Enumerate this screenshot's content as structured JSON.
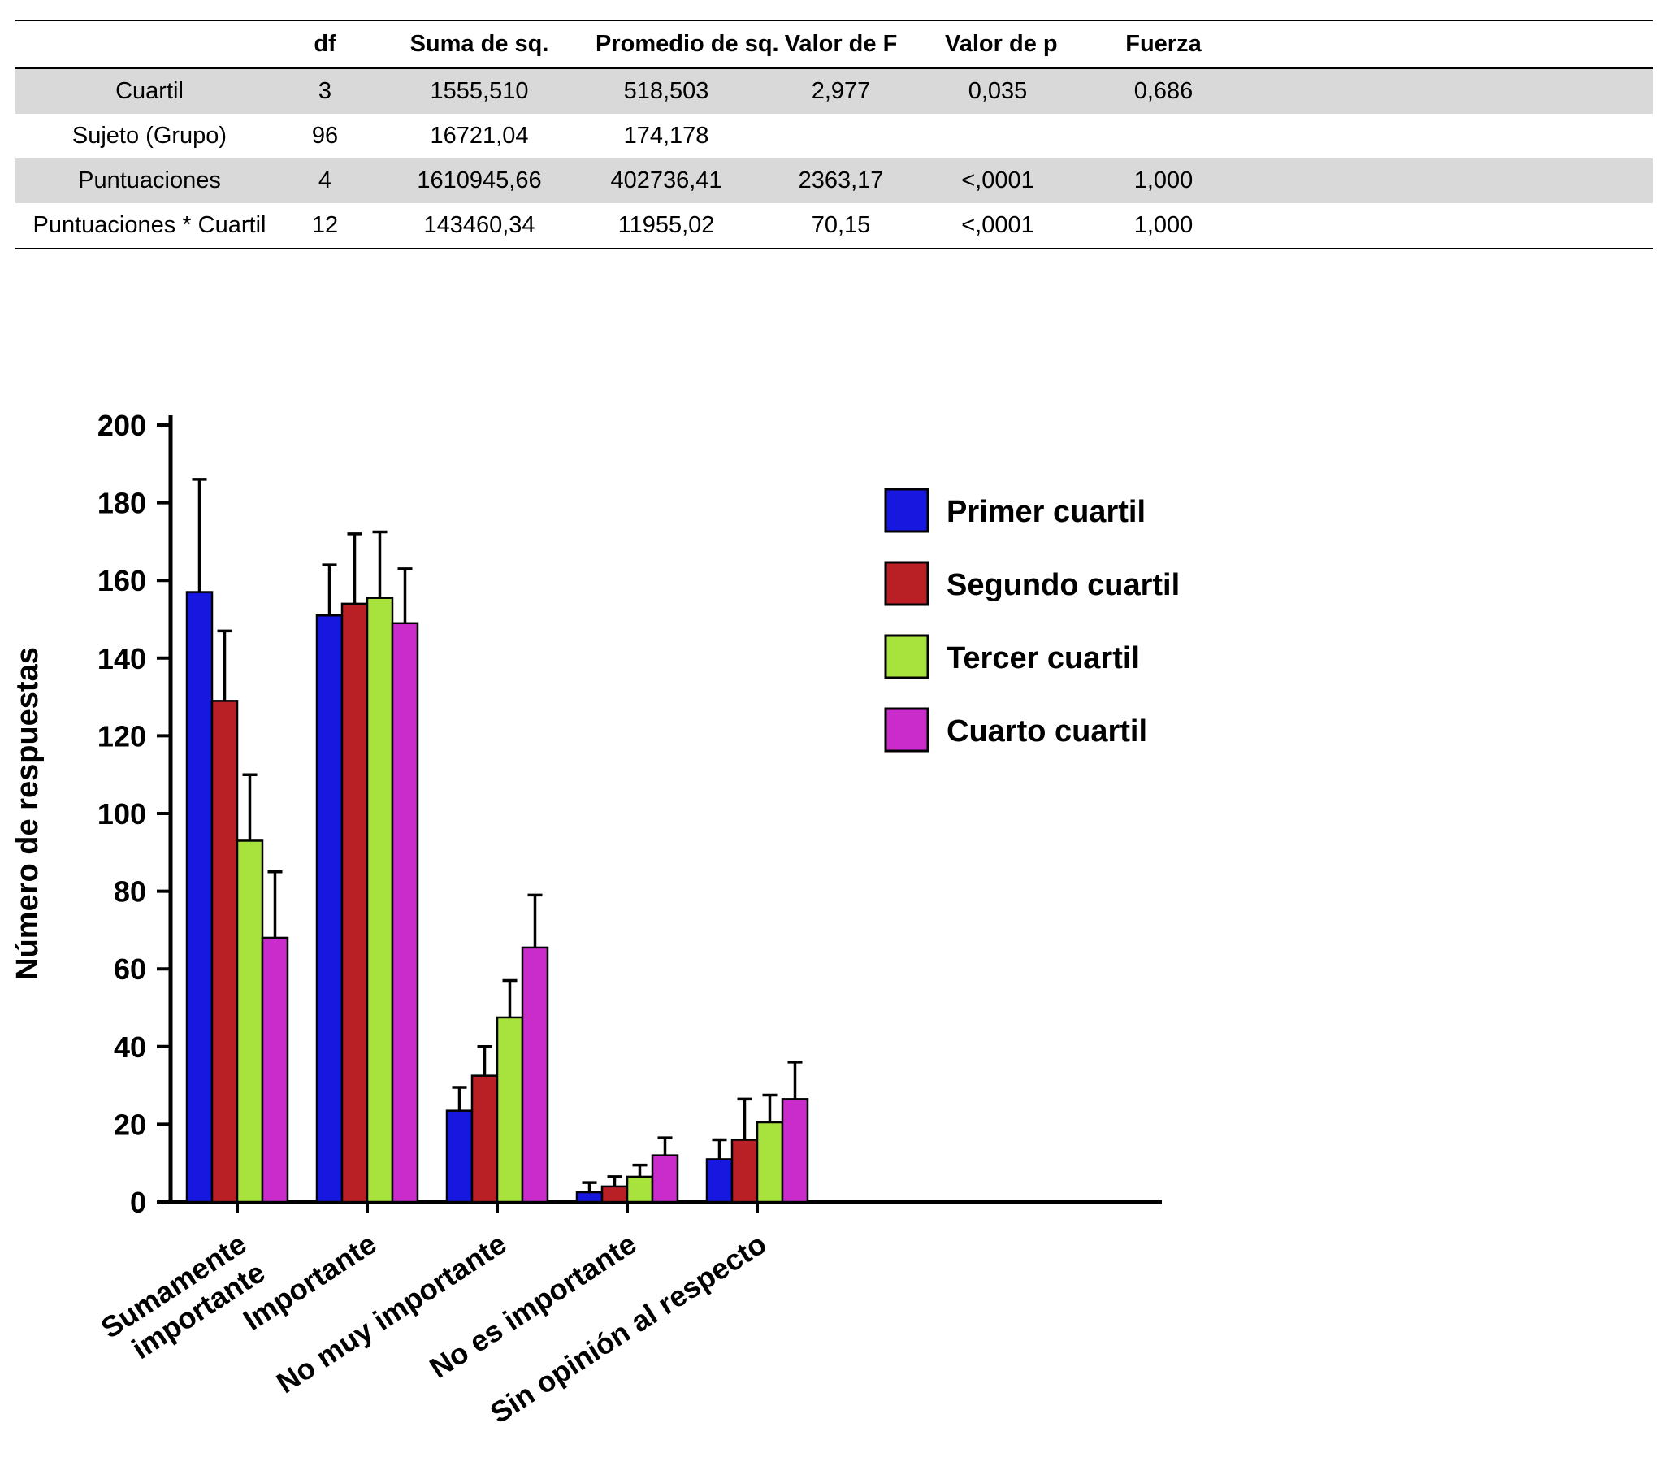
{
  "table": {
    "headers": [
      "",
      "df",
      "Suma de sq.",
      "Promedio de sq.",
      "Valor de F",
      "Valor de p",
      "Fuerza"
    ],
    "rows": [
      {
        "cells": [
          "Cuartil",
          "3",
          "1555,510",
          "518,503",
          "2,977",
          "0,035",
          "0,686"
        ],
        "shaded": true
      },
      {
        "cells": [
          "Sujeto (Grupo)",
          "96",
          "16721,04",
          "174,178",
          "",
          "",
          ""
        ],
        "shaded": false
      },
      {
        "cells": [
          "Puntuaciones",
          "4",
          "1610945,66",
          "402736,41",
          "2363,17",
          "<,0001",
          "1,000"
        ],
        "shaded": true
      },
      {
        "cells": [
          "Puntuaciones * Cuartil",
          "12",
          "143460,34",
          "11955,02",
          "70,15",
          "<,0001",
          "1,000"
        ],
        "shaded": false
      }
    ],
    "shaded_color": "#d9d9d9"
  },
  "chart_data": {
    "type": "bar",
    "title": "",
    "xlabel": "",
    "ylabel": "Número de respuestas",
    "ylim": [
      0,
      200
    ],
    "ytick_step": 20,
    "grid": false,
    "legend_position": "upper right inside",
    "categories": [
      "Sumamente\nimportante",
      "Importante",
      "No muy importante",
      "No es importante",
      "Sin opinión al respecto"
    ],
    "series": [
      {
        "name": "Primer cuartil",
        "color": "#1717e0",
        "values": [
          157,
          151,
          23.5,
          2.5,
          11
        ],
        "errors": [
          29,
          13,
          6,
          2.5,
          5
        ]
      },
      {
        "name": "Segundo cuartil",
        "color": "#b92025",
        "values": [
          129,
          154,
          32.5,
          4,
          16
        ],
        "errors": [
          18,
          18,
          7.5,
          2.5,
          10.5
        ]
      },
      {
        "name": "Tercer cuartil",
        "color": "#a8e23c",
        "values": [
          93,
          155.5,
          47.5,
          6.5,
          20.5
        ],
        "errors": [
          17,
          17,
          9.5,
          3,
          7
        ]
      },
      {
        "name": "Cuarto cuartil",
        "color": "#c92ccb",
        "values": [
          68,
          149,
          65.5,
          12,
          26.5
        ],
        "errors": [
          17,
          14,
          13.5,
          4.5,
          9.5
        ]
      }
    ]
  }
}
